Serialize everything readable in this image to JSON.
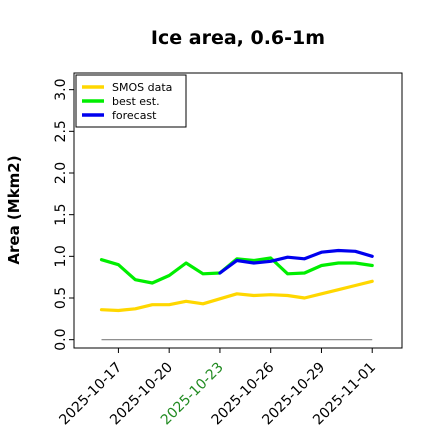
{
  "chart_data": {
    "type": "line",
    "title": "Ice area, 0.6-1m",
    "xlabel": "",
    "ylabel": "Area (Mkm2)",
    "ylim": [
      -0.1,
      3.2
    ],
    "yticks": [
      "0.0",
      "0.5",
      "1.0",
      "1.5",
      "2.0",
      "2.5",
      "3.0"
    ],
    "xticks": [
      {
        "label": "2025-10-17",
        "color": "#000000"
      },
      {
        "label": "2025-10-20",
        "color": "#000000"
      },
      {
        "label": "2025-10-23",
        "color": "#228b22"
      },
      {
        "label": "2025-10-26",
        "color": "#000000"
      },
      {
        "label": "2025-10-29",
        "color": "#000000"
      },
      {
        "label": "2025-11-01",
        "color": "#000000"
      }
    ],
    "legend_position": "top-left",
    "series": [
      {
        "name": "SMOS data",
        "color": "#ffd700",
        "x": [
          "2025-10-16",
          "2025-10-17",
          "2025-10-18",
          "2025-10-19",
          "2025-10-20",
          "2025-10-21",
          "2025-10-22",
          "2025-10-23",
          "2025-10-24",
          "2025-10-25",
          "2025-10-26",
          "2025-10-27",
          "2025-10-28",
          "2025-10-29",
          "2025-10-30",
          "2025-10-31",
          "2025-11-01"
        ],
        "values": [
          0.36,
          0.35,
          0.37,
          0.42,
          0.42,
          0.46,
          0.43,
          0.49,
          0.55,
          0.53,
          0.54,
          0.53,
          0.5,
          0.55,
          0.6,
          0.65,
          0.7
        ]
      },
      {
        "name": "best est.",
        "color": "#00ee00",
        "x": [
          "2025-10-16",
          "2025-10-17",
          "2025-10-18",
          "2025-10-19",
          "2025-10-20",
          "2025-10-21",
          "2025-10-22",
          "2025-10-23",
          "2025-10-24",
          "2025-10-25",
          "2025-10-26",
          "2025-10-27",
          "2025-10-28",
          "2025-10-29",
          "2025-10-30",
          "2025-10-31",
          "2025-11-01"
        ],
        "values": [
          0.96,
          0.9,
          0.72,
          0.68,
          0.77,
          0.92,
          0.79,
          0.8,
          0.97,
          0.95,
          0.98,
          0.79,
          0.8,
          0.89,
          0.92,
          0.92,
          0.89
        ]
      },
      {
        "name": "forecast",
        "color": "#0000ee",
        "x": [
          "2025-10-23",
          "2025-10-24",
          "2025-10-25",
          "2025-10-26",
          "2025-10-27",
          "2025-10-28",
          "2025-10-29",
          "2025-10-30",
          "2025-10-31",
          "2025-11-01"
        ],
        "values": [
          0.8,
          0.95,
          0.92,
          0.94,
          0.99,
          0.97,
          1.05,
          1.07,
          1.06,
          1.0
        ]
      }
    ],
    "reference_line": {
      "value": 0.0,
      "color": "#808080",
      "x": [
        "2025-10-16",
        "2025-11-01"
      ]
    }
  }
}
